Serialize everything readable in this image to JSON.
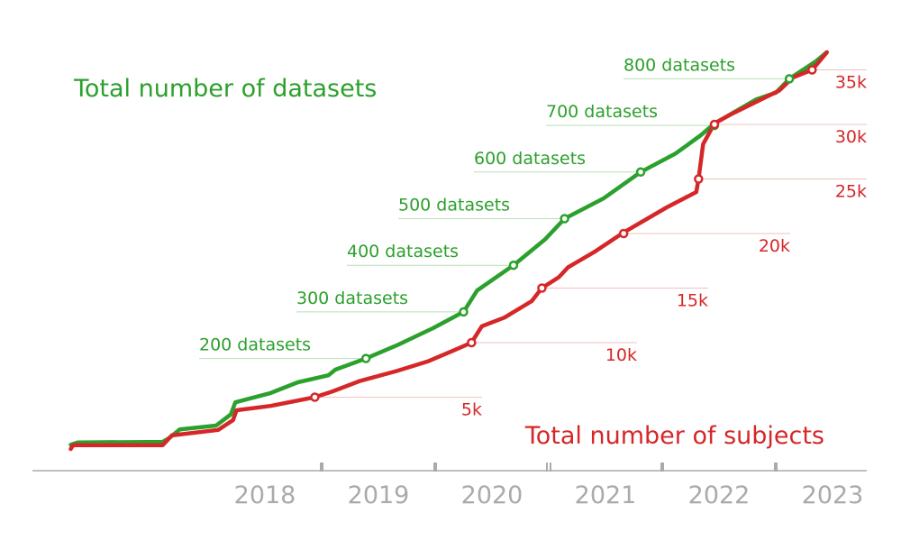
{
  "chart_data": {
    "type": "line",
    "title_datasets": "Total number of datasets",
    "title_subjects": "Total number of subjects",
    "colors": {
      "datasets": "#2ca02c",
      "subjects": "#d62728",
      "axis": "#aaaaaa"
    },
    "x_ticks": [
      2018,
      2019,
      2020,
      2021,
      2022,
      2023
    ],
    "x_tick_labels": [
      "2018",
      "2019",
      "2020",
      "2021",
      "2022",
      "2023"
    ],
    "xlim": [
      2016.3,
      2023.7
    ],
    "series": [
      {
        "name": "datasets",
        "points": [
          [
            2016.79,
            15
          ],
          [
            2016.85,
            20
          ],
          [
            2017.6,
            21
          ],
          [
            2017.66,
            30
          ],
          [
            2017.75,
            48
          ],
          [
            2018.07,
            56
          ],
          [
            2018.2,
            80
          ],
          [
            2018.24,
            106
          ],
          [
            2018.55,
            126
          ],
          [
            2018.79,
            149
          ],
          [
            2019.06,
            164
          ],
          [
            2019.12,
            176
          ],
          [
            2019.39,
            200
          ],
          [
            2019.66,
            228
          ],
          [
            2019.98,
            265
          ],
          [
            2020.25,
            300
          ],
          [
            2020.37,
            346
          ],
          [
            2020.69,
            400
          ],
          [
            2020.97,
            456
          ],
          [
            2021.14,
            500
          ],
          [
            2021.48,
            543
          ],
          [
            2021.81,
            600
          ],
          [
            2022.12,
            640
          ],
          [
            2022.34,
            679
          ],
          [
            2022.46,
            704
          ],
          [
            2022.83,
            756
          ],
          [
            2023.0,
            770
          ],
          [
            2023.12,
            800
          ],
          [
            2023.35,
            837
          ],
          [
            2023.45,
            857
          ]
        ]
      },
      {
        "name": "subjects",
        "unit": "k",
        "points": [
          [
            2016.79,
            0.25
          ],
          [
            2016.81,
            0.6
          ],
          [
            2017.6,
            0.6
          ],
          [
            2017.68,
            1.5
          ],
          [
            2018.09,
            2.0
          ],
          [
            2018.22,
            2.9
          ],
          [
            2018.25,
            3.8
          ],
          [
            2018.55,
            4.2
          ],
          [
            2018.94,
            5.0
          ],
          [
            2019.09,
            5.5
          ],
          [
            2019.34,
            6.5
          ],
          [
            2019.66,
            7.4
          ],
          [
            2019.94,
            8.3
          ],
          [
            2020.21,
            9.5
          ],
          [
            2020.32,
            10.0
          ],
          [
            2020.41,
            11.5
          ],
          [
            2020.61,
            12.3
          ],
          [
            2020.85,
            13.8
          ],
          [
            2020.94,
            15.0
          ],
          [
            2021.09,
            16.0
          ],
          [
            2021.17,
            16.9
          ],
          [
            2021.4,
            18.3
          ],
          [
            2021.66,
            20.1
          ],
          [
            2022.04,
            22.4
          ],
          [
            2022.3,
            23.8
          ],
          [
            2022.32,
            25.0
          ],
          [
            2022.36,
            28.2
          ],
          [
            2022.46,
            30.1
          ],
          [
            2022.6,
            30.9
          ],
          [
            2022.91,
            32.5
          ],
          [
            2023.03,
            33.1
          ],
          [
            2023.15,
            34.3
          ],
          [
            2023.32,
            35.0
          ],
          [
            2023.37,
            35.6
          ],
          [
            2023.45,
            36.6
          ]
        ]
      }
    ],
    "dataset_milestones": [
      {
        "value": 200,
        "year": 2019.39,
        "label": "200 datasets"
      },
      {
        "value": 300,
        "year": 2020.25,
        "label": "300 datasets"
      },
      {
        "value": 400,
        "year": 2020.69,
        "label": "400 datasets"
      },
      {
        "value": 500,
        "year": 2021.14,
        "label": "500 datasets"
      },
      {
        "value": 600,
        "year": 2021.81,
        "label": "600 datasets"
      },
      {
        "value": 700,
        "year": 2022.46,
        "label": "700 datasets"
      },
      {
        "value": 800,
        "year": 2023.12,
        "label": "800 datasets"
      }
    ],
    "subject_milestones": [
      {
        "value": 5,
        "year": 2018.94,
        "label": "5k"
      },
      {
        "value": 10,
        "year": 2020.32,
        "label": "10k"
      },
      {
        "value": 15,
        "year": 2020.94,
        "label": "15k"
      },
      {
        "value": 20,
        "year": 2021.66,
        "label": "20k"
      },
      {
        "value": 25,
        "year": 2022.32,
        "label": "25k"
      },
      {
        "value": 30,
        "year": 2022.46,
        "label": "30k"
      },
      {
        "value": 35,
        "year": 2023.32,
        "label": "35k"
      }
    ]
  }
}
